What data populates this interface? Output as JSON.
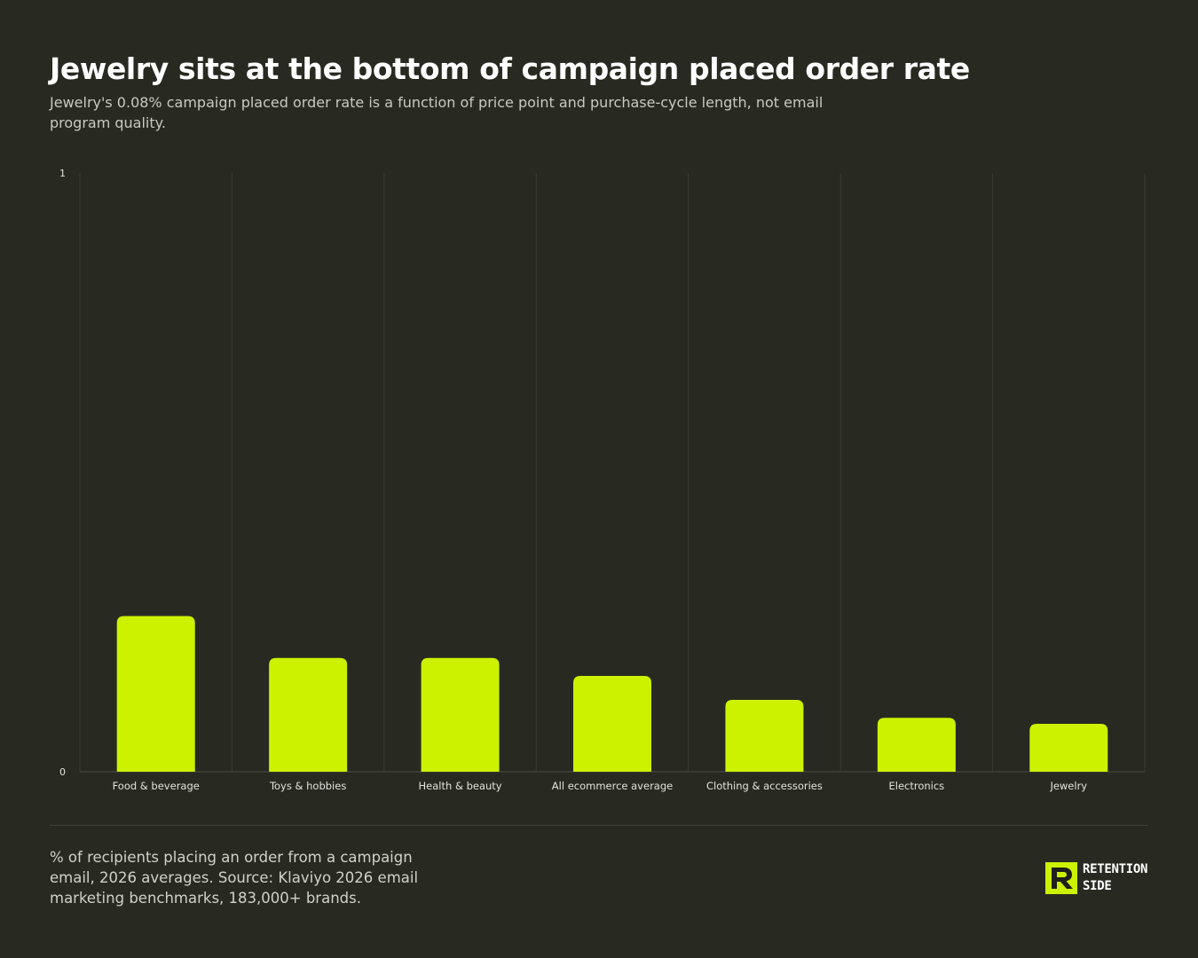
{
  "header": {
    "title": "Jewelry sits at the bottom of campaign placed order rate",
    "subtitle": "Jewelry's 0.08% campaign placed order rate is a function of price point and purchase-cycle length, not email program quality."
  },
  "footer": {
    "note": "% of recipients placing an order from a campaign email, 2026 averages. Source: Klaviyo 2026 email marketing benchmarks, 183,000+ brands.",
    "brand_line1": "RETENTION",
    "brand_line2": "SIDE",
    "brand_icon": "retention-side-logo-icon"
  },
  "colors": {
    "background": "#282a22",
    "bar": "#ccf200",
    "grid": "#3a3c33",
    "axis_text": "#c8c9c2",
    "tick_text": "#e2e3dc"
  },
  "chart_data": {
    "type": "bar",
    "categories": [
      "Food & beverage",
      "Toys & hobbies",
      "Health & beauty",
      "All ecommerce average",
      "Clothing & accessories",
      "Electronics",
      "Jewelry"
    ],
    "values": [
      0.26,
      0.19,
      0.19,
      0.16,
      0.12,
      0.09,
      0.08
    ],
    "ylim": [
      0,
      1
    ],
    "yticks": [
      "0",
      "1"
    ],
    "xlabel": "",
    "ylabel": "",
    "grid": true,
    "legend": "none"
  }
}
